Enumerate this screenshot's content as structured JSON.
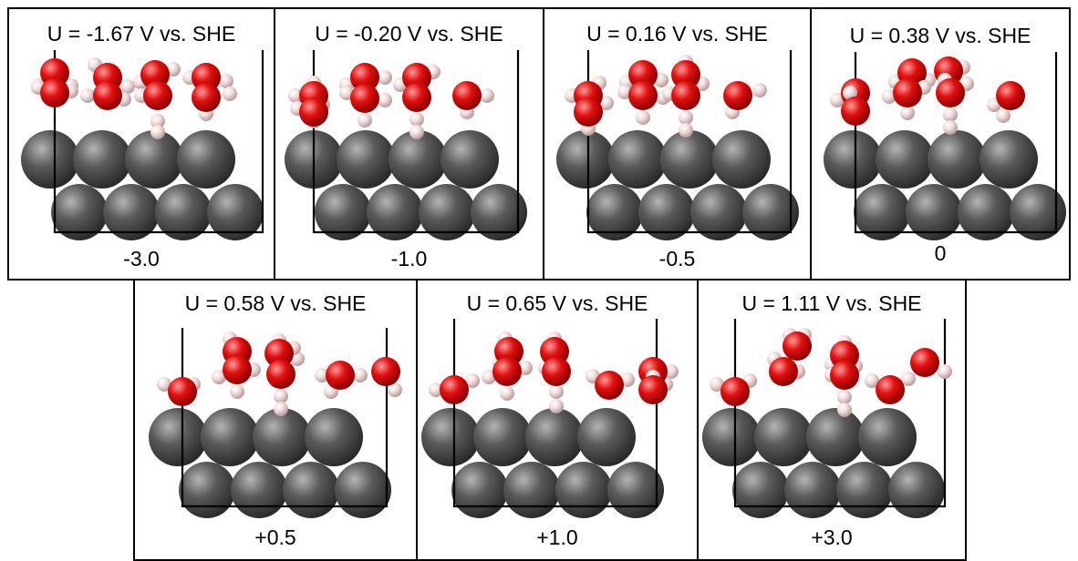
{
  "panels": [
    {
      "potential": "U = -1.67 V vs. SHE",
      "charge": "-3.0"
    },
    {
      "potential": "U = -0.20 V vs. SHE",
      "charge": "-1.0"
    },
    {
      "potential": "U = 0.16 V vs. SHE",
      "charge": "-0.5"
    },
    {
      "potential": "U = 0.38 V vs. SHE",
      "charge": "0"
    },
    {
      "potential": "U = 0.58 V vs. SHE",
      "charge": "+0.5"
    },
    {
      "potential": "U = 0.65 V vs. SHE",
      "charge": "+1.0"
    },
    {
      "potential": "U = 1.11 V vs. SHE",
      "charge": "+3.0"
    }
  ],
  "colors": {
    "metal_atom": "#5a5a5a",
    "oxygen_atom": "#e01010",
    "hydrogen_atom": "#f2dede",
    "border": "#000000"
  }
}
